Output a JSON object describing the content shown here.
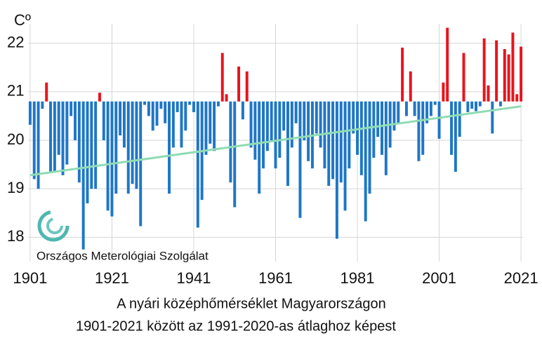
{
  "chart_data": {
    "type": "bar",
    "y_label": "Cº",
    "title": "A nyári középhőmérséklet Magyarországon",
    "subtitle": "1901-2021 között az 1991-2020-as átlaghoz képest",
    "annotation": "Országos Meterológiai Szolgálat",
    "x": [
      1901,
      1902,
      1903,
      1904,
      1905,
      1906,
      1907,
      1908,
      1909,
      1910,
      1911,
      1912,
      1913,
      1914,
      1915,
      1916,
      1917,
      1918,
      1919,
      1920,
      1921,
      1922,
      1923,
      1924,
      1925,
      1926,
      1927,
      1928,
      1929,
      1930,
      1931,
      1932,
      1933,
      1934,
      1935,
      1936,
      1937,
      1938,
      1939,
      1940,
      1941,
      1942,
      1943,
      1944,
      1945,
      1946,
      1947,
      1948,
      1949,
      1950,
      1951,
      1952,
      1953,
      1954,
      1955,
      1956,
      1957,
      1958,
      1959,
      1960,
      1961,
      1962,
      1963,
      1964,
      1965,
      1966,
      1967,
      1968,
      1969,
      1970,
      1971,
      1972,
      1973,
      1974,
      1975,
      1976,
      1977,
      1978,
      1979,
      1980,
      1981,
      1982,
      1983,
      1984,
      1985,
      1986,
      1987,
      1988,
      1989,
      1990,
      1991,
      1992,
      1993,
      1994,
      1995,
      1996,
      1997,
      1998,
      1999,
      2000,
      2001,
      2002,
      2003,
      2004,
      2005,
      2006,
      2007,
      2008,
      2009,
      2010,
      2011,
      2012,
      2013,
      2014,
      2015,
      2016,
      2017,
      2018,
      2019,
      2020,
      2021
    ],
    "values": [
      20.32,
      19.2,
      19.0,
      20.65,
      21.19,
      19.35,
      19.35,
      19.7,
      19.28,
      19.5,
      20.5,
      20.0,
      19.13,
      17.75,
      18.7,
      19.0,
      19.0,
      20.98,
      20.0,
      18.55,
      18.43,
      18.9,
      20.1,
      19.85,
      18.9,
      19.1,
      19.0,
      18.23,
      20.73,
      20.5,
      20.2,
      20.3,
      20.65,
      20.35,
      18.9,
      19.85,
      20.58,
      19.85,
      20.2,
      20.73,
      20.58,
      18.2,
      18.77,
      19.7,
      19.93,
      19.78,
      20.7,
      21.8,
      20.95,
      19.13,
      18.62,
      21.52,
      20.43,
      21.42,
      19.85,
      19.6,
      18.9,
      19.42,
      19.78,
      20.0,
      19.42,
      19.64,
      20.2,
      19.06,
      19.85,
      20.35,
      18.4,
      20.0,
      19.57,
      19.42,
      20.14,
      19.85,
      19.42,
      19.06,
      19.2,
      17.97,
      19.13,
      18.55,
      19.42,
      20.14,
      19.7,
      19.28,
      18.33,
      18.9,
      19.64,
      20.07,
      19.7,
      19.28,
      19.85,
      20.2,
      20.35,
      21.91,
      20.5,
      21.42,
      20.5,
      19.57,
      19.7,
      20.35,
      20.5,
      20.73,
      20.03,
      21.19,
      22.32,
      19.7,
      19.35,
      20.07,
      21.8,
      20.58,
      20.65,
      20.6,
      20.7,
      22.1,
      21.13,
      20.14,
      22.06,
      20.7,
      21.88,
      21.77,
      22.22,
      20.95,
      21.93
    ],
    "baseline": 20.8,
    "color_above": "#e8141c",
    "color_below": "#1f76c6",
    "trend": {
      "x": [
        1901,
        2021
      ],
      "values": [
        19.28,
        20.7
      ],
      "color": "#8fdcb4"
    },
    "xlim": [
      1900.5,
      2021.5
    ],
    "xticks": [
      1901,
      1921,
      1941,
      1961,
      1981,
      2001,
      2021
    ],
    "ylim": [
      17.5,
      22.4
    ],
    "yticks": [
      18,
      19,
      20,
      21,
      22
    ],
    "grid": true
  }
}
